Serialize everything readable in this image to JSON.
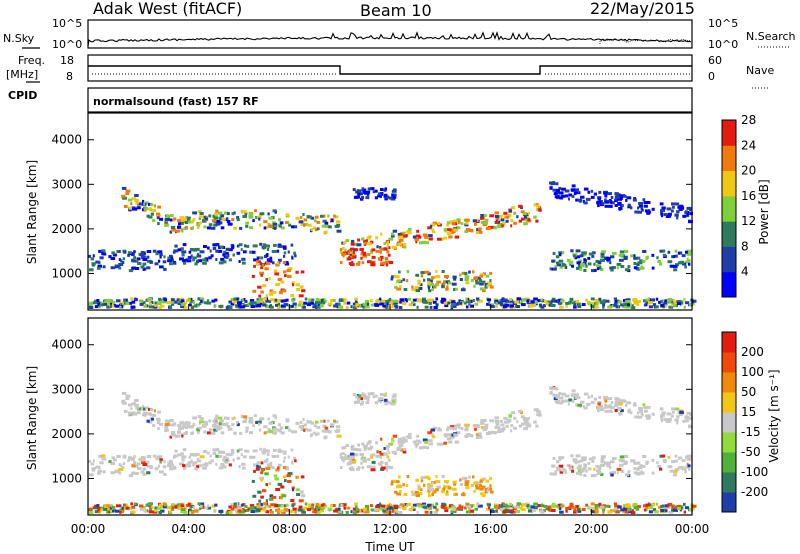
{
  "header": {
    "station": "Adak West (fitACF)",
    "beam": "Beam 10",
    "date": "22/May/2015"
  },
  "left_labels": {
    "nsky": "N.Sky",
    "freq": "Freq.",
    "freq_unit": "[MHz]",
    "cpid": "CPID"
  },
  "right_labels": {
    "nsearch": "N.Search",
    "nave": "Nave"
  },
  "cpid_text": "normalsound (fast) 157 RF",
  "noise_axis": {
    "top": "10^5",
    "bottom": "10^0"
  },
  "freq_axis": {
    "top": "18",
    "bottom": "8"
  },
  "nave_axis": {
    "top": "60",
    "bottom": "0"
  },
  "chart_data": [
    {
      "type": "heatmap",
      "name": "power",
      "ylabel": "Slant Range [km]",
      "xlabel": "",
      "ylim": [
        180,
        4600
      ],
      "yticks": [
        "1000",
        "2000",
        "3000",
        "4000"
      ],
      "colorbar_label": "Power [dB]",
      "colorbar_ticks": [
        "4",
        "8",
        "12",
        "16",
        "20",
        "24",
        "28"
      ],
      "colorbar_colors": [
        "#0000ff",
        "#1f3fa8",
        "#2e7a5c",
        "#7fcf3a",
        "#f0c814",
        "#f07a0a",
        "#e41c10"
      ]
    },
    {
      "type": "heatmap",
      "name": "velocity",
      "ylabel": "Slant Range [km]",
      "xlabel": "Time UT",
      "ylim": [
        180,
        4600
      ],
      "yticks": [
        "1000",
        "2000",
        "3000",
        "4000"
      ],
      "xticks": [
        "00:00",
        "04:00",
        "08:00",
        "12:00",
        "16:00",
        "20:00",
        "00:00"
      ],
      "colorbar_label": "Velocity [m s⁻¹]",
      "colorbar_ticks": [
        "200",
        "100",
        "50",
        "15",
        "-15",
        "-50",
        "-100",
        "-200"
      ],
      "colorbar_colors": [
        "#1f3fa8",
        "#2e7a5c",
        "#4fb03a",
        "#8fdc3a",
        "#c8c8c8",
        "#f0c814",
        "#f08a0a",
        "#f04a0a",
        "#e41c10"
      ]
    }
  ],
  "colors": {
    "ground_scatter": "#c8c8c8",
    "frame": "#000000"
  }
}
